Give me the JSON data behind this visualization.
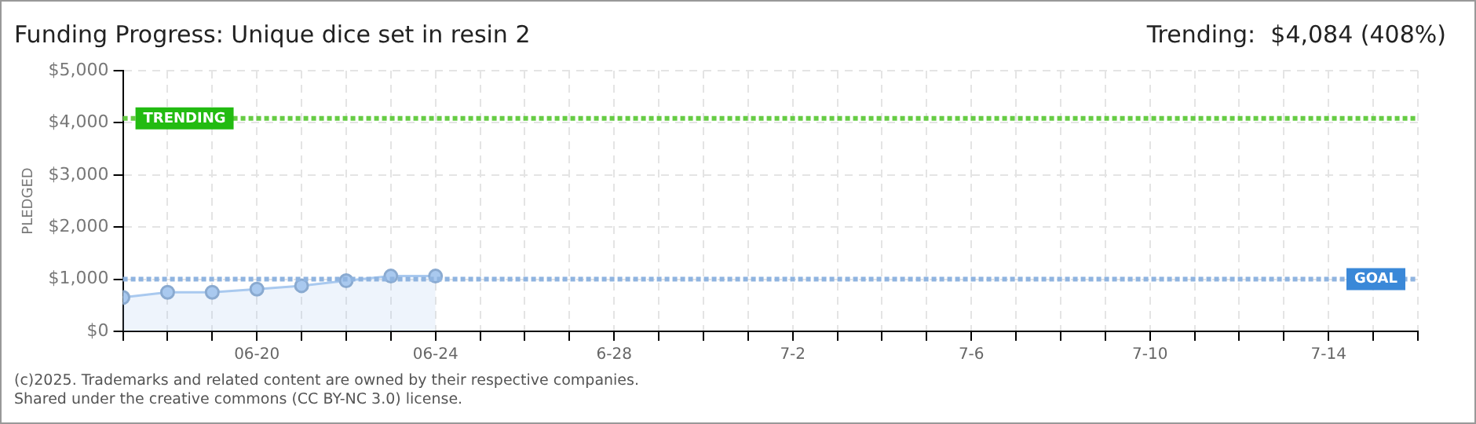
{
  "chart_data": {
    "type": "area",
    "title": "Funding Progress: Unique dice set in resin 2",
    "subtitle": "Trending:  $4,084 (408%)",
    "ylabel": "PLEDGED",
    "x": [
      "--06-17",
      "--06-18",
      "--06-19",
      "--06-20",
      "--06-21",
      "--06-22",
      "--06-23",
      "--06-24"
    ],
    "series": [
      {
        "color": "#a9c9ef",
        "values": [
          650,
          750,
          750,
          810,
          875,
          970,
          1060,
          1060
        ]
      }
    ],
    "xlim": [
      "--06-17",
      "--07-16"
    ],
    "xticks": [
      {
        "value": "--06-17",
        "label": null
      },
      {
        "value": "--06-18",
        "label": null
      },
      {
        "value": "--06-19",
        "label": null
      },
      {
        "value": "--06-20",
        "label": "06-20"
      },
      {
        "value": "--06-21",
        "label": null
      },
      {
        "value": "--06-22",
        "label": null
      },
      {
        "value": "--06-23",
        "label": null
      },
      {
        "value": "--06-24",
        "label": "06-24"
      },
      {
        "value": "--06-25",
        "label": null
      },
      {
        "value": "--06-26",
        "label": null
      },
      {
        "value": "--06-27",
        "label": null
      },
      {
        "value": "--06-28",
        "label": "6-28"
      },
      {
        "value": "--06-29",
        "label": null
      },
      {
        "value": "--06-30",
        "label": null
      },
      {
        "value": "--07-01",
        "label": null
      },
      {
        "value": "--07-02",
        "label": "7-2"
      },
      {
        "value": "--07-03",
        "label": null
      },
      {
        "value": "--07-04",
        "label": null
      },
      {
        "value": "--07-05",
        "label": null
      },
      {
        "value": "--07-06",
        "label": "7-6"
      },
      {
        "value": "--07-07",
        "label": null
      },
      {
        "value": "--07-08",
        "label": null
      },
      {
        "value": "--07-09",
        "label": null
      },
      {
        "value": "--07-10",
        "label": "7-10"
      },
      {
        "value": "--07-11",
        "label": null
      },
      {
        "value": "--07-12",
        "label": null
      },
      {
        "value": "--07-13",
        "label": null
      },
      {
        "value": "--07-14",
        "label": "7-14"
      },
      {
        "value": "--07-15",
        "label": null
      },
      {
        "value": "--07-16",
        "label": null
      }
    ],
    "ylim": [
      0,
      5000
    ],
    "yticks": [
      {
        "value": 0,
        "label": "$0"
      },
      {
        "value": 1000,
        "label": "$1,000"
      },
      {
        "value": 2000,
        "label": "$2,000"
      },
      {
        "value": 3000,
        "label": "$3,000"
      },
      {
        "value": 4000,
        "label": "$4,000"
      },
      {
        "value": 5000,
        "label": "$5,000"
      }
    ],
    "ref_lines": [
      {
        "axis": "y",
        "value": 4084,
        "label": "TRENDING",
        "color": "#66cc44",
        "line_style": "dotted"
      },
      {
        "axis": "y",
        "value": 1000,
        "label": "GOAL",
        "color": "#8fb4e0",
        "line_style": "dotted"
      }
    ],
    "grid": true,
    "marker": "circle",
    "legend": false,
    "annotations": [
      "(c)2025. Trademarks and related content are owned by their respective companies.",
      "Shared under the creative commons (CC BY-NC 3.0) license."
    ]
  }
}
